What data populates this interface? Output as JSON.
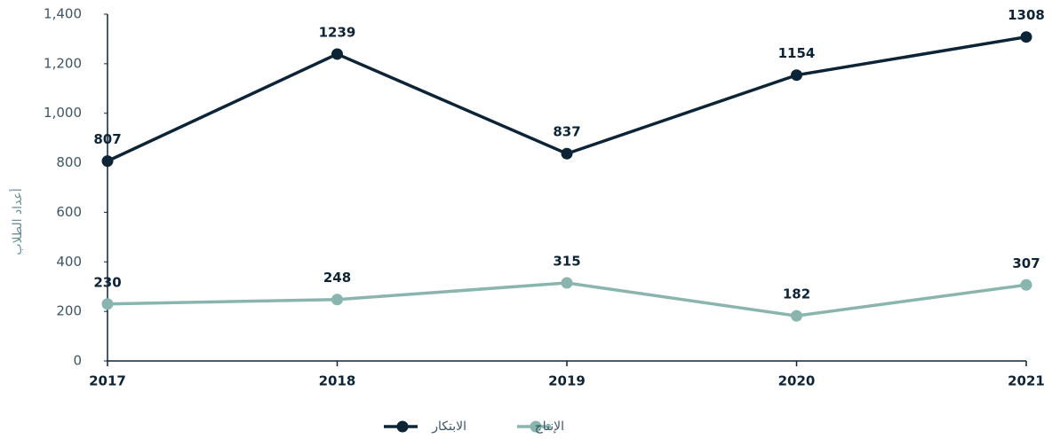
{
  "chart_data": {
    "type": "line",
    "y_label": "أعداد الطلاب",
    "x": [
      "2017",
      "2018",
      "2019",
      "2020",
      "2021"
    ],
    "series": [
      {
        "name": "الابتكار",
        "color": "#0d2436",
        "values": [
          807,
          1239,
          837,
          1154,
          1308
        ]
      },
      {
        "name": "الإنتاج",
        "color": "#8ab5ae",
        "values": [
          230,
          248,
          315,
          182,
          307
        ]
      }
    ],
    "ylim": [
      0,
      1400
    ],
    "yticks": [
      0,
      200,
      400,
      600,
      800,
      {
        "value": 1000,
        "label": "1,000"
      },
      {
        "value": 1200,
        "label": "1,200"
      },
      {
        "value": 1400,
        "label": "1,400"
      }
    ],
    "legend": "bottom"
  }
}
